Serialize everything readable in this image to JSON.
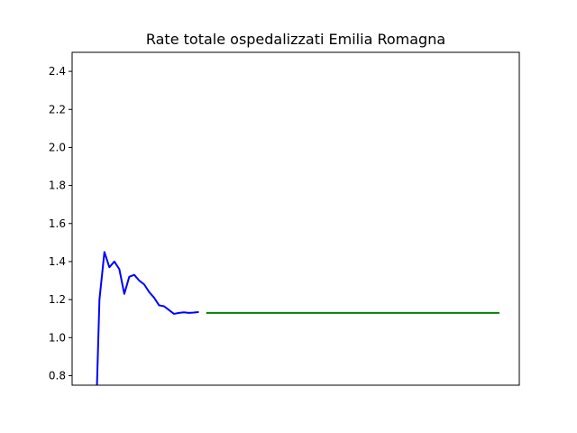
{
  "chart_data": {
    "type": "line",
    "title": "Rate totale ospedalizzati Emilia Romagna",
    "xlabel": "",
    "ylabel": "",
    "ylim": [
      0.75,
      2.5
    ],
    "xlim": [
      0,
      90
    ],
    "yticks": [
      "0.8",
      "1.0",
      "1.2",
      "1.4",
      "1.6",
      "1.8",
      "2.0",
      "2.2",
      "2.4"
    ],
    "grid": false,
    "x_tick_labels_shown": false,
    "series": [
      {
        "color": "#0000ff",
        "x": [
          5,
          5.5,
          6.5,
          7.5,
          8.5,
          9.5,
          10.5,
          11.5,
          12.5,
          13.5,
          14.5,
          15.5,
          16.5,
          17.5,
          18.5,
          19.5,
          20.5,
          21.5,
          22.5,
          23.5,
          24.5,
          25.5
        ],
        "values": [
          0.75,
          1.2,
          1.45,
          1.37,
          1.4,
          1.36,
          1.23,
          1.32,
          1.33,
          1.3,
          1.28,
          1.24,
          1.21,
          1.17,
          1.165,
          1.145,
          1.125,
          1.13,
          1.133,
          1.13,
          1.132,
          1.135
        ]
      },
      {
        "color": "#008000",
        "x": [
          27,
          86
        ],
        "values": [
          1.13,
          1.13
        ]
      }
    ]
  }
}
